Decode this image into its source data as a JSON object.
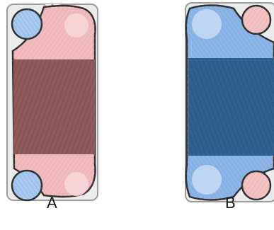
{
  "plates": [
    {
      "label": "A",
      "colors": {
        "gasket_outline": "#3a3a3a",
        "plate_border": "#b0b0b0",
        "plate_fill": "#e9e9e9",
        "flow_area": "#f0b6b8",
        "heat_transfer_area": "#8c5a5c",
        "hot_port": "#f3c3c4",
        "cold_port": "#a9c8ee"
      },
      "ports": [
        "cold-port-top-left",
        "hot-port-top-right",
        "cold-port-bottom-left",
        "hot-port-bottom-right"
      ]
    },
    {
      "label": "B",
      "colors": {
        "gasket_outline": "#3a3a3a",
        "plate_border": "#b0b0b0",
        "plate_fill": "#e9e9e9",
        "flow_area": "#88b2e6",
        "heat_transfer_area": "#2f5f91",
        "hot_port": "#f3c3c4",
        "cold_port": "#a9c8ee"
      },
      "ports": [
        "cold-port-top-left",
        "hot-port-top-right",
        "cold-port-bottom-left",
        "hot-port-bottom-right"
      ]
    }
  ]
}
